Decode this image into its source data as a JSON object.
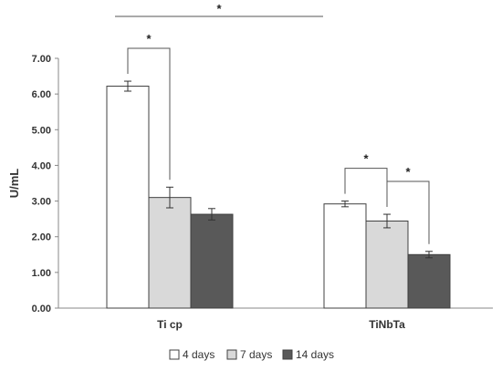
{
  "chart_data": {
    "type": "bar",
    "title": "",
    "xlabel": "",
    "ylabel": "U/mL",
    "ylim": [
      0,
      7
    ],
    "yticks": [
      "0.00",
      "1.00",
      "2.00",
      "3.00",
      "4.00",
      "5.00",
      "6.00",
      "7.00"
    ],
    "categories": [
      "Ti cp",
      "TiNbTa"
    ],
    "series": [
      {
        "name": "4 days",
        "color": "#ffffff",
        "values": [
          6.22,
          2.92
        ],
        "errors": [
          0.14,
          0.08
        ]
      },
      {
        "name": "7 days",
        "color": "#d9d9d9",
        "values": [
          3.1,
          2.44
        ],
        "errors": [
          0.29,
          0.19
        ]
      },
      {
        "name": "14 days",
        "color": "#595959",
        "values": [
          2.63,
          1.5
        ],
        "errors": [
          0.16,
          0.09
        ]
      }
    ],
    "grid": false,
    "legend_position": "bottom-center",
    "significance": [
      {
        "label": "*",
        "category": 0,
        "from_series": 0,
        "to_series": 1
      },
      {
        "label": "*",
        "category": 1,
        "from_series": 0,
        "to_series": 1
      },
      {
        "label": "*",
        "category": 1,
        "from_series": 1,
        "to_series": 2
      },
      {
        "label": "*",
        "span": "across-categories"
      }
    ]
  }
}
